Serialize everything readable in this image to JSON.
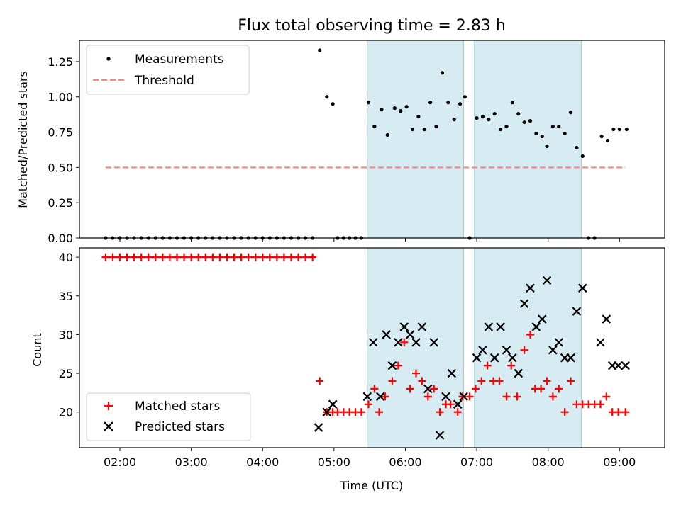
{
  "chart_data": [
    {
      "type": "scatter",
      "title": "Flux total observing time = 2.83 h",
      "xlabel": "",
      "ylabel": "Matched/Predicted stars",
      "ylim": [
        0,
        1.4
      ],
      "yticks": [
        "0.00",
        "0.25",
        "0.50",
        "0.75",
        "1.00",
        "1.25"
      ],
      "legend_position": "top-left",
      "shaded_intervals": [
        [
          "05:28",
          "06:49"
        ],
        [
          "06:58",
          "08:28"
        ]
      ],
      "threshold": {
        "name": "Threshold",
        "y": 0.5,
        "x_range": [
          "01:48",
          "09:05"
        ],
        "color": "#ff7f7f"
      },
      "series": [
        {
          "name": "Measurements",
          "color": "#000000",
          "points": [
            [
              "01:48",
              0
            ],
            [
              "01:54",
              0
            ],
            [
              "02:00",
              0
            ],
            [
              "02:06",
              0
            ],
            [
              "02:12",
              0
            ],
            [
              "02:18",
              0
            ],
            [
              "02:24",
              0
            ],
            [
              "02:30",
              0
            ],
            [
              "02:36",
              0
            ],
            [
              "02:42",
              0
            ],
            [
              "02:48",
              0
            ],
            [
              "02:54",
              0
            ],
            [
              "03:00",
              0
            ],
            [
              "03:06",
              0
            ],
            [
              "03:12",
              0
            ],
            [
              "03:18",
              0
            ],
            [
              "03:24",
              0
            ],
            [
              "03:30",
              0
            ],
            [
              "03:36",
              0
            ],
            [
              "03:42",
              0
            ],
            [
              "03:48",
              0
            ],
            [
              "03:54",
              0
            ],
            [
              "04:00",
              0
            ],
            [
              "04:06",
              0
            ],
            [
              "04:12",
              0
            ],
            [
              "04:18",
              0
            ],
            [
              "04:24",
              0
            ],
            [
              "04:30",
              0
            ],
            [
              "04:36",
              0
            ],
            [
              "04:42",
              0
            ],
            [
              "04:48",
              1.33
            ],
            [
              "04:54",
              1.0
            ],
            [
              "04:59",
              0.95
            ],
            [
              "05:03",
              0
            ],
            [
              "05:08",
              0
            ],
            [
              "05:13",
              0
            ],
            [
              "05:18",
              0
            ],
            [
              "05:23",
              0
            ],
            [
              "05:29",
              0.96
            ],
            [
              "05:34",
              0.79
            ],
            [
              "05:40",
              0.91
            ],
            [
              "05:45",
              0.73
            ],
            [
              "05:51",
              0.92
            ],
            [
              "05:56",
              0.9
            ],
            [
              "06:01",
              0.93
            ],
            [
              "06:06",
              0.77
            ],
            [
              "06:11",
              0.86
            ],
            [
              "06:16",
              0.77
            ],
            [
              "06:21",
              0.96
            ],
            [
              "06:26",
              0.79
            ],
            [
              "06:31",
              1.17
            ],
            [
              "06:36",
              0.96
            ],
            [
              "06:41",
              0.84
            ],
            [
              "06:46",
              0.95
            ],
            [
              "06:50",
              1.0
            ],
            [
              "06:54",
              0
            ],
            [
              "07:00",
              0.85
            ],
            [
              "07:05",
              0.86
            ],
            [
              "07:10",
              0.84
            ],
            [
              "07:15",
              0.88
            ],
            [
              "07:20",
              0.77
            ],
            [
              "07:25",
              0.79
            ],
            [
              "07:30",
              0.96
            ],
            [
              "07:35",
              0.88
            ],
            [
              "07:40",
              0.82
            ],
            [
              "07:45",
              0.83
            ],
            [
              "07:50",
              0.74
            ],
            [
              "07:55",
              0.72
            ],
            [
              "07:59",
              0.65
            ],
            [
              "08:04",
              0.79
            ],
            [
              "08:09",
              0.79
            ],
            [
              "08:14",
              0.74
            ],
            [
              "08:19",
              0.89
            ],
            [
              "08:24",
              0.64
            ],
            [
              "08:29",
              0.58
            ],
            [
              "08:34",
              0
            ],
            [
              "08:39",
              0
            ],
            [
              "08:45",
              0.72
            ],
            [
              "08:50",
              0.69
            ],
            [
              "08:55",
              0.77
            ],
            [
              "09:00",
              0.77
            ],
            [
              "09:06",
              0.77
            ]
          ]
        }
      ]
    },
    {
      "type": "scatter",
      "title": "",
      "xlabel": "Time (UTC)",
      "ylabel": "Count",
      "ylim": [
        15.4,
        41.2
      ],
      "yticks": [
        "20",
        "25",
        "30",
        "35",
        "40"
      ],
      "xticks": [
        "02:00",
        "03:00",
        "04:00",
        "05:00",
        "06:00",
        "07:00",
        "08:00",
        "09:00"
      ],
      "legend_position": "bottom-left",
      "shaded_intervals": [
        [
          "05:28",
          "06:49"
        ],
        [
          "06:58",
          "08:28"
        ]
      ],
      "series": [
        {
          "name": "Matched stars",
          "color": "#ff0000",
          "points": [
            [
              "01:48",
              40
            ],
            [
              "01:54",
              40
            ],
            [
              "02:00",
              40
            ],
            [
              "02:06",
              40
            ],
            [
              "02:12",
              40
            ],
            [
              "02:18",
              40
            ],
            [
              "02:24",
              40
            ],
            [
              "02:30",
              40
            ],
            [
              "02:36",
              40
            ],
            [
              "02:42",
              40
            ],
            [
              "02:48",
              40
            ],
            [
              "02:54",
              40
            ],
            [
              "03:00",
              40
            ],
            [
              "03:06",
              40
            ],
            [
              "03:12",
              40
            ],
            [
              "03:18",
              40
            ],
            [
              "03:24",
              40
            ],
            [
              "03:30",
              40
            ],
            [
              "03:36",
              40
            ],
            [
              "03:42",
              40
            ],
            [
              "03:48",
              40
            ],
            [
              "03:54",
              40
            ],
            [
              "04:00",
              40
            ],
            [
              "04:06",
              40
            ],
            [
              "04:12",
              40
            ],
            [
              "04:18",
              40
            ],
            [
              "04:24",
              40
            ],
            [
              "04:30",
              40
            ],
            [
              "04:36",
              40
            ],
            [
              "04:42",
              40
            ],
            [
              "04:48",
              24
            ],
            [
              "04:54",
              20
            ],
            [
              "04:59",
              20
            ],
            [
              "05:03",
              20
            ],
            [
              "05:08",
              20
            ],
            [
              "05:13",
              20
            ],
            [
              "05:18",
              20
            ],
            [
              "05:23",
              20
            ],
            [
              "05:29",
              21
            ],
            [
              "05:34",
              23
            ],
            [
              "05:38",
              20
            ],
            [
              "05:43",
              22
            ],
            [
              "05:49",
              24
            ],
            [
              "05:54",
              26
            ],
            [
              "05:59",
              29
            ],
            [
              "06:04",
              23
            ],
            [
              "06:09",
              25
            ],
            [
              "06:14",
              24
            ],
            [
              "06:19",
              22
            ],
            [
              "06:24",
              23
            ],
            [
              "06:29",
              20
            ],
            [
              "06:34",
              21
            ],
            [
              "06:38",
              21
            ],
            [
              "06:44",
              20
            ],
            [
              "06:48",
              22
            ],
            [
              "06:54",
              22
            ],
            [
              "06:59",
              23
            ],
            [
              "07:04",
              24
            ],
            [
              "07:09",
              26
            ],
            [
              "07:14",
              24
            ],
            [
              "07:19",
              24
            ],
            [
              "07:25",
              22
            ],
            [
              "07:29",
              26
            ],
            [
              "07:34",
              22
            ],
            [
              "07:40",
              28
            ],
            [
              "07:45",
              30
            ],
            [
              "07:49",
              23
            ],
            [
              "07:54",
              23
            ],
            [
              "07:59",
              24
            ],
            [
              "08:04",
              22
            ],
            [
              "08:09",
              23
            ],
            [
              "08:14",
              20
            ],
            [
              "08:19",
              24
            ],
            [
              "08:24",
              21
            ],
            [
              "08:29",
              21
            ],
            [
              "08:34",
              21
            ],
            [
              "08:39",
              21
            ],
            [
              "08:44",
              21
            ],
            [
              "08:49",
              22
            ],
            [
              "08:54",
              20
            ],
            [
              "08:59",
              20
            ],
            [
              "09:05",
              20
            ]
          ]
        },
        {
          "name": "Predicted stars",
          "color": "#000000",
          "points": [
            [
              "04:47",
              18
            ],
            [
              "04:54",
              20
            ],
            [
              "04:59",
              21
            ],
            [
              "05:28",
              22
            ],
            [
              "05:33",
              29
            ],
            [
              "05:39",
              22
            ],
            [
              "05:44",
              30
            ],
            [
              "05:49",
              26
            ],
            [
              "05:54",
              29
            ],
            [
              "05:59",
              31
            ],
            [
              "06:04",
              30
            ],
            [
              "06:09",
              29
            ],
            [
              "06:14",
              31
            ],
            [
              "06:19",
              23
            ],
            [
              "06:24",
              29
            ],
            [
              "06:29",
              17
            ],
            [
              "06:34",
              22
            ],
            [
              "06:39",
              25
            ],
            [
              "06:44",
              21
            ],
            [
              "06:49",
              22
            ],
            [
              "07:00",
              27
            ],
            [
              "07:05",
              28
            ],
            [
              "07:10",
              31
            ],
            [
              "07:15",
              27
            ],
            [
              "07:20",
              31
            ],
            [
              "07:25",
              28
            ],
            [
              "07:30",
              27
            ],
            [
              "07:35",
              25
            ],
            [
              "07:40",
              34
            ],
            [
              "07:45",
              36
            ],
            [
              "07:50",
              31
            ],
            [
              "07:55",
              32
            ],
            [
              "07:59",
              37
            ],
            [
              "08:04",
              28
            ],
            [
              "08:09",
              29
            ],
            [
              "08:14",
              27
            ],
            [
              "08:19",
              27
            ],
            [
              "08:24",
              33
            ],
            [
              "08:29",
              36
            ],
            [
              "08:44",
              29
            ],
            [
              "08:49",
              32
            ],
            [
              "08:54",
              26
            ],
            [
              "08:59",
              26
            ],
            [
              "09:05",
              26
            ]
          ]
        }
      ]
    }
  ]
}
